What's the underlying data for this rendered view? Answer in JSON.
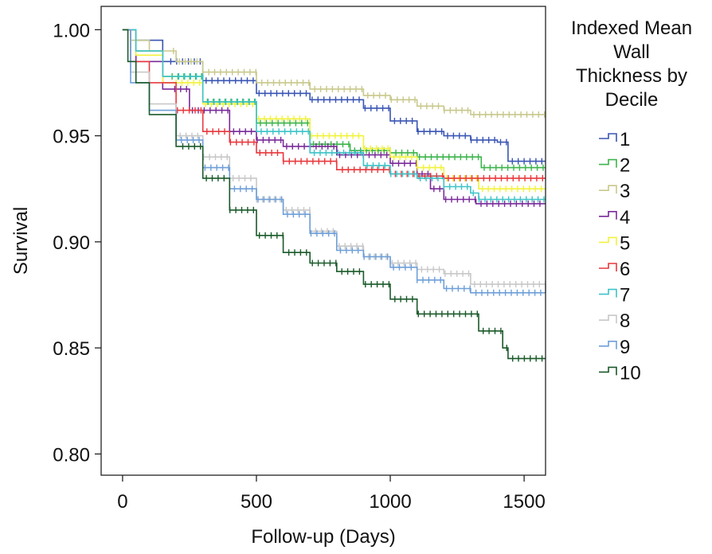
{
  "chart_data": {
    "type": "line",
    "title": "",
    "xlabel": "Follow-up (Days)",
    "ylabel": "Survival",
    "xlim": [
      -80,
      1580
    ],
    "ylim": [
      0.79,
      1.011
    ],
    "xticks": [
      0,
      500,
      1000,
      1500
    ],
    "xtick_labels": [
      "0",
      "500",
      "1000",
      "1500"
    ],
    "yticks": [
      0.8,
      0.85,
      0.9,
      0.95,
      1.0
    ],
    "ytick_labels": [
      "0.80",
      "0.85",
      "0.90",
      "0.95",
      "1.00"
    ],
    "grid": false,
    "legend": {
      "title_lines": [
        "Indexed Mean",
        "Wall",
        "Thickness by",
        "Decile"
      ],
      "placement": "right"
    },
    "series": [
      {
        "name": "1",
        "color": "#3a55b4",
        "x": [
          0,
          50,
          150,
          300,
          500,
          700,
          900,
          1000,
          1100,
          1200,
          1300,
          1400,
          1440,
          1580
        ],
        "y": [
          1.0,
          0.995,
          0.985,
          0.976,
          0.97,
          0.967,
          0.963,
          0.957,
          0.952,
          0.95,
          0.948,
          0.947,
          0.938,
          0.938
        ]
      },
      {
        "name": "2",
        "color": "#3cb44b",
        "x": [
          0,
          50,
          150,
          300,
          500,
          700,
          850,
          1000,
          1100,
          1200,
          1340,
          1580
        ],
        "y": [
          1.0,
          0.99,
          0.978,
          0.966,
          0.956,
          0.946,
          0.943,
          0.942,
          0.94,
          0.94,
          0.935,
          0.935
        ]
      },
      {
        "name": "3",
        "color": "#c8c88c",
        "x": [
          0,
          30,
          100,
          200,
          300,
          500,
          700,
          900,
          1000,
          1100,
          1200,
          1300,
          1580
        ],
        "y": [
          1.0,
          0.995,
          0.99,
          0.985,
          0.98,
          0.975,
          0.972,
          0.969,
          0.967,
          0.964,
          0.962,
          0.96,
          0.96
        ]
      },
      {
        "name": "4",
        "color": "#7a2a9a",
        "x": [
          0,
          50,
          150,
          250,
          400,
          500,
          600,
          800,
          1000,
          1100,
          1150,
          1200,
          1320,
          1580
        ],
        "y": [
          1.0,
          0.985,
          0.972,
          0.962,
          0.952,
          0.948,
          0.945,
          0.941,
          0.937,
          0.932,
          0.925,
          0.92,
          0.918,
          0.918
        ]
      },
      {
        "name": "5",
        "color": "#f2f23c",
        "x": [
          0,
          50,
          150,
          300,
          500,
          700,
          900,
          1000,
          1100,
          1200,
          1330,
          1580
        ],
        "y": [
          1.0,
          0.988,
          0.975,
          0.965,
          0.958,
          0.95,
          0.944,
          0.94,
          0.935,
          0.93,
          0.925,
          0.925
        ]
      },
      {
        "name": "6",
        "color": "#e8383c",
        "x": [
          0,
          30,
          100,
          200,
          300,
          400,
          500,
          600,
          800,
          1000,
          1100,
          1200,
          1300,
          1580
        ],
        "y": [
          1.0,
          0.985,
          0.975,
          0.962,
          0.952,
          0.947,
          0.942,
          0.938,
          0.934,
          0.932,
          0.931,
          0.93,
          0.93,
          0.93
        ]
      },
      {
        "name": "7",
        "color": "#3cc3c8",
        "x": [
          0,
          50,
          150,
          300,
          500,
          700,
          900,
          1000,
          1100,
          1200,
          1300,
          1330,
          1580
        ],
        "y": [
          1.0,
          0.99,
          0.978,
          0.966,
          0.952,
          0.942,
          0.936,
          0.932,
          0.93,
          0.926,
          0.923,
          0.92,
          0.92
        ]
      },
      {
        "name": "8",
        "color": "#c8c8c8",
        "x": [
          0,
          30,
          100,
          200,
          300,
          400,
          500,
          600,
          700,
          800,
          900,
          1000,
          1100,
          1200,
          1300,
          1580
        ],
        "y": [
          1.0,
          0.98,
          0.965,
          0.95,
          0.94,
          0.93,
          0.92,
          0.915,
          0.905,
          0.898,
          0.893,
          0.89,
          0.887,
          0.885,
          0.88,
          0.876
        ]
      },
      {
        "name": "9",
        "color": "#6f9fd8",
        "x": [
          0,
          30,
          100,
          200,
          300,
          400,
          500,
          600,
          700,
          800,
          900,
          1000,
          1100,
          1200,
          1300,
          1580
        ],
        "y": [
          1.0,
          0.975,
          0.962,
          0.948,
          0.935,
          0.925,
          0.92,
          0.913,
          0.904,
          0.896,
          0.893,
          0.888,
          0.882,
          0.878,
          0.876,
          0.876
        ]
      },
      {
        "name": "10",
        "color": "#1a5a2a",
        "x": [
          0,
          20,
          50,
          100,
          200,
          300,
          400,
          500,
          600,
          700,
          800,
          900,
          1000,
          1100,
          1200,
          1300,
          1330,
          1400,
          1420,
          1440,
          1580
        ],
        "y": [
          1.0,
          0.985,
          0.975,
          0.96,
          0.945,
          0.93,
          0.915,
          0.903,
          0.895,
          0.89,
          0.886,
          0.88,
          0.873,
          0.866,
          0.866,
          0.866,
          0.858,
          0.858,
          0.85,
          0.845,
          0.845
        ]
      }
    ]
  }
}
